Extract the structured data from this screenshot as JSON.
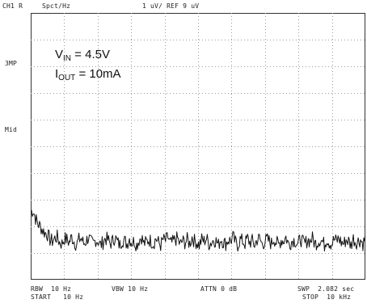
{
  "header": {
    "channel": "CH1 R",
    "units": "Spct/Hz",
    "scale": "1 uV/ REF 9 uV"
  },
  "side_labels": {
    "top": "3MP",
    "mid": "Mid"
  },
  "annotation": {
    "vin_base": "V",
    "vin_sub": "IN",
    "vin_rest": " = 4.5V",
    "iout_base": "I",
    "iout_sub": "OUT",
    "iout_rest": " = 10mA"
  },
  "footer": {
    "rbw": "RBW  10 Hz",
    "start": "START   10 Hz",
    "vbw": "VBW 10 Hz",
    "atten": "ATTN 0 dB",
    "swp": "SWP  2.082 sec",
    "stop": "STOP  10 kHz"
  },
  "chart_data": {
    "type": "line",
    "title": "",
    "xlabel": "",
    "ylabel": "",
    "x_range_hz": [
      10,
      10000
    ],
    "y_divisions": 10,
    "x_divisions": 10,
    "grid": true,
    "series": [
      {
        "values": [
          2.55,
          2.6,
          2.3,
          2.1,
          2.0,
          1.85,
          1.75,
          1.7,
          1.5,
          1.45,
          1.55,
          1.6,
          1.4,
          1.35,
          1.55,
          1.5,
          1.4,
          1.6,
          1.45,
          1.3,
          1.5,
          1.55,
          1.35,
          1.45,
          1.6,
          1.4,
          1.35,
          1.5,
          1.45,
          1.3,
          1.4,
          1.55,
          1.5,
          1.35,
          1.45,
          1.6,
          1.4,
          1.3,
          1.5,
          1.45,
          1.35,
          1.55,
          1.4,
          1.45,
          1.3,
          1.5,
          1.6,
          1.35,
          1.4,
          1.5,
          1.45,
          1.35,
          1.55,
          1.4,
          1.3,
          1.5,
          1.45,
          1.6,
          1.35,
          1.4,
          1.5,
          1.55,
          1.3,
          1.45,
          1.4,
          1.5,
          1.35,
          1.6,
          1.45,
          1.4,
          1.3,
          1.5,
          1.45,
          1.55,
          1.35,
          1.4,
          1.5,
          1.45,
          1.3,
          1.55,
          1.4,
          1.35,
          1.5,
          1.45,
          1.6,
          1.4,
          1.3,
          1.5,
          1.45,
          1.35,
          1.55,
          1.4,
          1.45,
          1.3,
          1.5,
          1.55,
          1.35,
          1.4,
          1.5,
          1.45,
          1.35,
          1.55,
          1.4,
          1.3,
          1.5,
          1.45,
          1.6,
          1.35,
          1.4,
          1.5,
          1.45,
          1.3,
          1.55,
          1.4,
          1.35,
          1.5,
          1.45,
          1.55,
          1.35,
          1.4,
          1.5,
          1.45,
          1.3,
          1.55,
          1.4,
          1.35,
          1.5,
          1.45,
          1.55,
          1.4,
          1.35,
          1.5,
          1.45,
          1.3,
          1.55,
          1.4,
          1.45,
          1.5,
          1.35,
          1.55
        ]
      }
    ],
    "y_range": [
      0,
      10
    ]
  },
  "colors": {
    "trace": "#111111",
    "grid": "#9a9a9a",
    "frame": "#333333"
  }
}
